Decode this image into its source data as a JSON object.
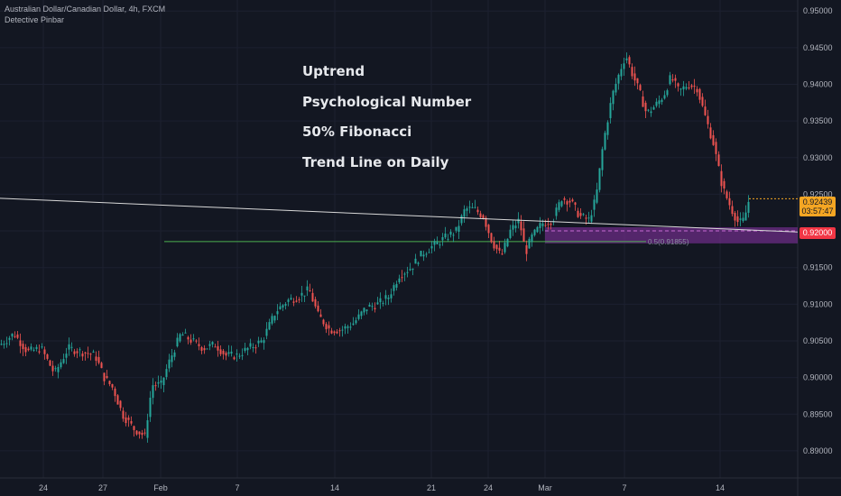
{
  "header": {
    "title": "Australian Dollar/Canadian Dollar, 4h, FXCM",
    "indicator": "Detective Pinbar"
  },
  "annotations": [
    "Uptrend",
    "Psychological Number",
    "50% Fibonacci",
    "Trend Line on Daily"
  ],
  "badges": {
    "last_price": "0.92439",
    "countdown": "03:57:47",
    "level_price": "0.92000"
  },
  "fib_label": "0.5(0.91855)",
  "colors": {
    "background": "#131722",
    "bull": "#26a69a",
    "bear": "#ef5350",
    "trendline": "#d8d8d8",
    "fib_line": "#4caf50",
    "zone": "#6b2c84",
    "price_badge": "#f5a623",
    "level_badge": "#f23645"
  },
  "chart_data": {
    "type": "candlestick",
    "title": "Australian Dollar/Canadian Dollar, 4h, FXCM",
    "y_ticks": [
      "0.95000",
      "0.94500",
      "0.94000",
      "0.93500",
      "0.93000",
      "0.92500",
      "0.92000",
      "0.91500",
      "0.91000",
      "0.90500",
      "0.90000",
      "0.89500",
      "0.89000"
    ],
    "x_ticks": [
      "24",
      "27",
      "Feb",
      "7",
      "14",
      "21",
      "24",
      "Mar",
      "7",
      "14"
    ],
    "ylim": [
      0.8863,
      0.9515
    ],
    "key_levels": {
      "psychological": 0.92,
      "fib_50": 0.91855
    },
    "last_price": 0.92439,
    "path_points": [
      [
        0,
        0.9045
      ],
      [
        15,
        0.906
      ],
      [
        30,
        0.9035
      ],
      [
        45,
        0.904
      ],
      [
        60,
        0.9005
      ],
      [
        75,
        0.904
      ],
      [
        90,
        0.9035
      ],
      [
        105,
        0.903
      ],
      [
        115,
        0.9
      ],
      [
        125,
        0.8985
      ],
      [
        135,
        0.895
      ],
      [
        148,
        0.893
      ],
      [
        160,
        0.892
      ],
      [
        168,
        0.899
      ],
      [
        178,
        0.899
      ],
      [
        188,
        0.9025
      ],
      [
        200,
        0.906
      ],
      [
        212,
        0.905
      ],
      [
        225,
        0.904
      ],
      [
        238,
        0.9045
      ],
      [
        250,
        0.903
      ],
      [
        262,
        0.903
      ],
      [
        275,
        0.904
      ],
      [
        290,
        0.905
      ],
      [
        305,
        0.909
      ],
      [
        318,
        0.9105
      ],
      [
        330,
        0.911
      ],
      [
        342,
        0.912
      ],
      [
        352,
        0.9085
      ],
      [
        365,
        0.9065
      ],
      [
        378,
        0.9065
      ],
      [
        392,
        0.9075
      ],
      [
        405,
        0.9095
      ],
      [
        418,
        0.91
      ],
      [
        430,
        0.911
      ],
      [
        442,
        0.914
      ],
      [
        455,
        0.915
      ],
      [
        468,
        0.917
      ],
      [
        480,
        0.918
      ],
      [
        492,
        0.919
      ],
      [
        505,
        0.92
      ],
      [
        515,
        0.923
      ],
      [
        525,
        0.923
      ],
      [
        535,
        0.922
      ],
      [
        545,
        0.9185
      ],
      [
        555,
        0.9165
      ],
      [
        565,
        0.92
      ],
      [
        575,
        0.9215
      ],
      [
        582,
        0.917
      ],
      [
        588,
        0.919
      ],
      [
        600,
        0.921
      ],
      [
        612,
        0.9215
      ],
      [
        622,
        0.9245
      ],
      [
        632,
        0.924
      ],
      [
        642,
        0.922
      ],
      [
        652,
        0.9215
      ],
      [
        660,
        0.9245
      ],
      [
        668,
        0.932
      ],
      [
        678,
        0.9385
      ],
      [
        687,
        0.942
      ],
      [
        693,
        0.944
      ],
      [
        700,
        0.9415
      ],
      [
        708,
        0.939
      ],
      [
        716,
        0.936
      ],
      [
        725,
        0.937
      ],
      [
        735,
        0.9385
      ],
      [
        743,
        0.941
      ],
      [
        752,
        0.939
      ],
      [
        762,
        0.94
      ],
      [
        772,
        0.9395
      ],
      [
        780,
        0.936
      ],
      [
        790,
        0.932
      ],
      [
        800,
        0.926
      ],
      [
        810,
        0.923
      ],
      [
        818,
        0.921
      ],
      [
        824,
        0.9215
      ],
      [
        830,
        0.9245
      ]
    ]
  }
}
